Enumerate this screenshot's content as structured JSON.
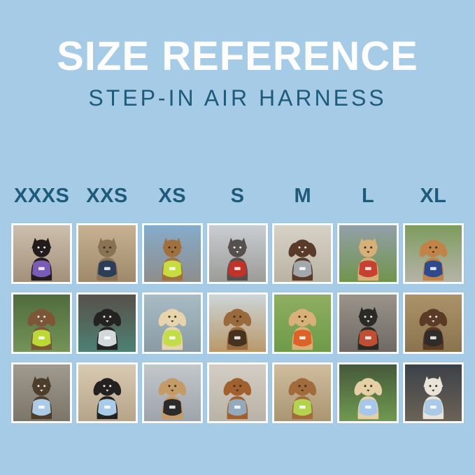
{
  "background_color": "#a6cbe6",
  "tile_border_color": "#f8fbfd",
  "header_color": "#1e5a7a",
  "title": {
    "text": "SIZE REFERENCE",
    "color": "#fdfdfd"
  },
  "subtitle": {
    "text": "STEP-IN AIR HARNESS",
    "color": "#1e5a7a"
  },
  "size_columns": [
    "XXXS",
    "XXS",
    "XS",
    "S",
    "M",
    "L",
    "XL"
  ],
  "grid": {
    "rows": [
      {
        "cells": [
          {
            "size": "XXXS",
            "animal": "cat",
            "ears": "pointy",
            "description": "Black kitten wearing a purple harness indoors by white stair spindles",
            "fur": "#221d1c",
            "harness": "#7a5cb8",
            "bg": [
              "#cdbfae",
              "#a2907a"
            ]
          },
          {
            "size": "XXS",
            "animal": "cat",
            "ears": "pointy",
            "description": "Brown tabby cat wearing a navy harness looking out a window",
            "fur": "#8a7254",
            "harness": "#2c3e57",
            "bg": [
              "#c7b193",
              "#9e8a6b"
            ]
          },
          {
            "size": "XS",
            "animal": "cat",
            "ears": "pointy",
            "description": "Bengal cat wearing a neon green harness inside a car with blue sky in window",
            "fur": "#a0703f",
            "harness": "#c6dc3f",
            "bg": [
              "#86abcb",
              "#8e8e8c"
            ]
          },
          {
            "size": "S",
            "animal": "dog",
            "ears": "pointy",
            "description": "Gray French Bulldog wearing a red harness on a sidewalk",
            "fur": "#55504d",
            "harness": "#c13329",
            "bg": [
              "#c9cdd2",
              "#9c9c98"
            ]
          },
          {
            "size": "M",
            "animal": "dog",
            "ears": "floppy",
            "description": "Chocolate brown spaniel wearing a gray harness on concrete",
            "fur": "#5a3a28",
            "harness": "#a3a8ad",
            "bg": [
              "#d6d2c6",
              "#b9b3a4"
            ]
          },
          {
            "size": "L",
            "animal": "dog",
            "ears": "pointy",
            "description": "Cream Shiba Inu with an orange ball wearing a red harness in a grassy field under stormy sky",
            "fur": "#d7af78",
            "harness": "#c74030",
            "bg": [
              "#93a0a8",
              "#70944c"
            ]
          },
          {
            "size": "XL",
            "animal": "dog",
            "ears": "floppy",
            "description": "Golden Retriever wearing a navy blue harness on a path lined with yellow flowers",
            "fur": "#c08348",
            "harness": "#2f4a8c",
            "bg": [
              "#7e9c5d",
              "#b5b3a9"
            ]
          }
        ]
      },
      {
        "cells": [
          {
            "size": "XXXS",
            "animal": "dog",
            "ears": "floppy",
            "description": "Fluffy brown puppy wearing a neon green harness among green foliage",
            "fur": "#7d5638",
            "harness": "#bcd836",
            "bg": [
              "#4f6b3c",
              "#74945a"
            ]
          },
          {
            "size": "XXS",
            "animal": "dog",
            "ears": "floppy",
            "description": "Black pug puppy wearing a light gray harness on a car seat with teal blanket",
            "fur": "#252321",
            "harness": "#d3d9da",
            "bg": [
              "#57504b",
              "#4e8173"
            ]
          },
          {
            "size": "XS",
            "animal": "dog",
            "ears": "floppy",
            "description": "Cream long-haired dachshund wearing a neon green harness on a dock",
            "fur": "#e7d4ad",
            "harness": "#c3dc4a",
            "bg": [
              "#a8bcc6",
              "#8a9aa2"
            ]
          },
          {
            "size": "S",
            "animal": "dog",
            "ears": "floppy",
            "description": "Long-haired brown dachshund wearing a dark brown harness on a waterfront deck",
            "fur": "#9a6a3c",
            "harness": "#45321f",
            "bg": [
              "#ccd5d8",
              "#b99869"
            ]
          },
          {
            "size": "M",
            "animal": "dog",
            "ears": "floppy",
            "description": "Smiling golden puppy wearing an orange harness on a green lawn",
            "fur": "#d8b078",
            "harness": "#dd6227",
            "bg": [
              "#8fae62",
              "#6e9a49"
            ]
          },
          {
            "size": "L",
            "animal": "dog",
            "ears": "pointy",
            "description": "Black-and-tan dog wearing a red harness inside a corrugated metal tunnel",
            "fur": "#2c2a26",
            "harness": "#bf4f33",
            "bg": [
              "#9a948b",
              "#6e6a63"
            ]
          },
          {
            "size": "XL",
            "animal": "dog",
            "ears": "floppy",
            "description": "Brown-and-white dog wearing a black harness on a wooden picnic table",
            "fur": "#5c3b26",
            "harness": "#2f2c2a",
            "bg": [
              "#ab9268",
              "#8a7450"
            ]
          }
        ]
      },
      {
        "cells": [
          {
            "size": "XXXS",
            "animal": "dog",
            "ears": "pointy",
            "description": "Yorkie puppy wearing a light blue harness on a sunny path",
            "fur": "#4d3e2c",
            "harness": "#abcbe9",
            "bg": [
              "#a09a8f",
              "#7b7668"
            ]
          },
          {
            "size": "XXS",
            "animal": "dog",
            "ears": "floppy",
            "description": "Black-and-tan long-haired dachshund wearing a light blue harness on a beige car seat",
            "fur": "#242220",
            "harness": "#a9cbe9",
            "bg": [
              "#d8cab2",
              "#b5a488"
            ]
          },
          {
            "size": "XS",
            "animal": "dog",
            "ears": "floppy",
            "description": "Apricot poodle puppy wearing a black harness on gray deck boards",
            "fur": "#c49a67",
            "harness": "#2b2b2b",
            "bg": [
              "#c2c7cb",
              "#9da4aa"
            ]
          },
          {
            "size": "S",
            "animal": "dog",
            "ears": "floppy",
            "description": "Red dachshund wearing a slate blue harness on light concrete",
            "fur": "#a2602e",
            "harness": "#93a9bd",
            "bg": [
              "#d3cdc4",
              "#b9b2a6"
            ]
          },
          {
            "size": "M",
            "animal": "dog",
            "ears": "floppy",
            "description": "Red goldendoodle wearing a neon green harness on a stone path",
            "fur": "#a16b3c",
            "harness": "#b3d24d",
            "bg": [
              "#cfbd9e",
              "#a99572"
            ]
          },
          {
            "size": "L",
            "animal": "dog",
            "ears": "floppy",
            "description": "Cream golden retriever puppy wearing a light blue harness and leash on grass",
            "fur": "#e4d0a4",
            "harness": "#a6c7eb",
            "bg": [
              "#46593b",
              "#6f9a50"
            ]
          },
          {
            "size": "XL",
            "animal": "dog",
            "ears": "pointy",
            "description": "White shepherd wearing a light blue harness on a city street at night",
            "fur": "#eae4d8",
            "harness": "#aac9e7",
            "bg": [
              "#3c4148",
              "#6b6357"
            ]
          }
        ]
      }
    ]
  }
}
